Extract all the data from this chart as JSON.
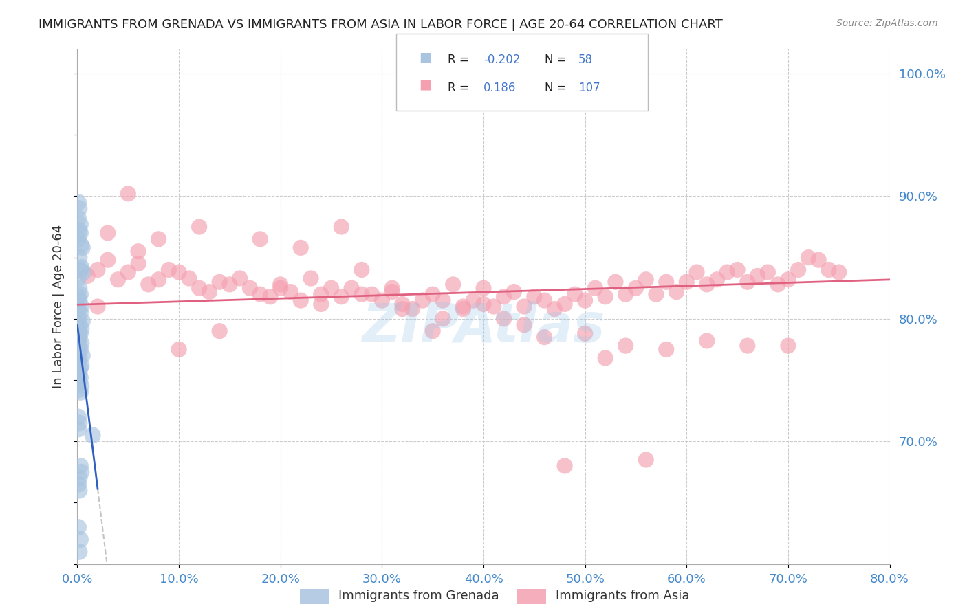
{
  "title": "IMMIGRANTS FROM GRENADA VS IMMIGRANTS FROM ASIA IN LABOR FORCE | AGE 20-64 CORRELATION CHART",
  "source": "Source: ZipAtlas.com",
  "ylabel": "In Labor Force | Age 20-64",
  "xlabel_grenada": "Immigrants from Grenada",
  "xlabel_asia": "Immigrants from Asia",
  "watermark": "ZIPAtlas",
  "legend_r_grenada": "-0.202",
  "legend_n_grenada": "58",
  "legend_r_asia": "0.186",
  "legend_n_asia": "107",
  "grenada_color": "#a8c4e0",
  "asia_color": "#f4a0b0",
  "grenada_line_color": "#3060c0",
  "asia_line_color": "#e06080",
  "background_color": "#ffffff",
  "grid_color": "#cccccc",
  "xmin": 0.0,
  "xmax": 0.8,
  "ymin": 0.6,
  "ymax": 1.02,
  "yticks": [
    0.7,
    0.8,
    0.9,
    1.0
  ],
  "xticks": [
    0.0,
    0.1,
    0.2,
    0.3,
    0.4,
    0.5,
    0.6,
    0.7,
    0.8
  ],
  "grenada_x": [
    0.001,
    0.002,
    0.003,
    0.001,
    0.004,
    0.003,
    0.002,
    0.005,
    0.001,
    0.002,
    0.003,
    0.004,
    0.001,
    0.006,
    0.002,
    0.003,
    0.001,
    0.002,
    0.004,
    0.001,
    0.003,
    0.001,
    0.005,
    0.002,
    0.004,
    0.001,
    0.003,
    0.002,
    0.001,
    0.004,
    0.002,
    0.003,
    0.001,
    0.005,
    0.002,
    0.001,
    0.004,
    0.003,
    0.001,
    0.002,
    0.003,
    0.001,
    0.002,
    0.004,
    0.001,
    0.003,
    0.001,
    0.002,
    0.001,
    0.015,
    0.003,
    0.004,
    0.002,
    0.001,
    0.002,
    0.001,
    0.003,
    0.002
  ],
  "grenada_y": [
    0.895,
    0.89,
    0.87,
    0.882,
    0.86,
    0.877,
    0.872,
    0.858,
    0.865,
    0.85,
    0.84,
    0.842,
    0.833,
    0.838,
    0.825,
    0.82,
    0.818,
    0.815,
    0.81,
    0.808,
    0.805,
    0.8,
    0.798,
    0.795,
    0.792,
    0.79,
    0.788,
    0.785,
    0.783,
    0.78,
    0.778,
    0.775,
    0.772,
    0.77,
    0.768,
    0.765,
    0.762,
    0.76,
    0.758,
    0.755,
    0.752,
    0.75,
    0.748,
    0.745,
    0.742,
    0.74,
    0.72,
    0.715,
    0.71,
    0.705,
    0.68,
    0.675,
    0.67,
    0.665,
    0.66,
    0.63,
    0.62,
    0.61
  ],
  "asia_x": [
    0.01,
    0.02,
    0.03,
    0.04,
    0.05,
    0.06,
    0.07,
    0.08,
    0.09,
    0.1,
    0.11,
    0.12,
    0.13,
    0.14,
    0.15,
    0.16,
    0.17,
    0.18,
    0.19,
    0.2,
    0.21,
    0.22,
    0.23,
    0.24,
    0.25,
    0.26,
    0.27,
    0.28,
    0.29,
    0.3,
    0.31,
    0.32,
    0.33,
    0.34,
    0.35,
    0.36,
    0.37,
    0.38,
    0.39,
    0.4,
    0.41,
    0.42,
    0.43,
    0.44,
    0.45,
    0.46,
    0.47,
    0.48,
    0.49,
    0.5,
    0.51,
    0.52,
    0.53,
    0.54,
    0.55,
    0.56,
    0.57,
    0.58,
    0.59,
    0.6,
    0.61,
    0.62,
    0.63,
    0.64,
    0.65,
    0.66,
    0.67,
    0.68,
    0.69,
    0.7,
    0.71,
    0.72,
    0.73,
    0.74,
    0.75,
    0.03,
    0.05,
    0.08,
    0.12,
    0.18,
    0.22,
    0.26,
    0.31,
    0.35,
    0.38,
    0.42,
    0.46,
    0.5,
    0.54,
    0.58,
    0.62,
    0.66,
    0.7,
    0.02,
    0.06,
    0.1,
    0.14,
    0.2,
    0.24,
    0.28,
    0.32,
    0.36,
    0.4,
    0.44,
    0.48,
    0.52,
    0.56
  ],
  "asia_y": [
    0.835,
    0.84,
    0.848,
    0.832,
    0.838,
    0.845,
    0.828,
    0.832,
    0.84,
    0.838,
    0.833,
    0.825,
    0.822,
    0.83,
    0.828,
    0.833,
    0.825,
    0.82,
    0.818,
    0.828,
    0.822,
    0.815,
    0.833,
    0.82,
    0.825,
    0.818,
    0.825,
    0.84,
    0.82,
    0.815,
    0.822,
    0.812,
    0.808,
    0.815,
    0.82,
    0.815,
    0.828,
    0.81,
    0.815,
    0.825,
    0.81,
    0.818,
    0.822,
    0.81,
    0.818,
    0.815,
    0.808,
    0.812,
    0.82,
    0.815,
    0.825,
    0.818,
    0.83,
    0.82,
    0.825,
    0.832,
    0.82,
    0.83,
    0.822,
    0.83,
    0.838,
    0.828,
    0.832,
    0.838,
    0.84,
    0.83,
    0.835,
    0.838,
    0.828,
    0.832,
    0.84,
    0.85,
    0.848,
    0.84,
    0.838,
    0.87,
    0.902,
    0.865,
    0.875,
    0.865,
    0.858,
    0.875,
    0.825,
    0.79,
    0.808,
    0.8,
    0.785,
    0.788,
    0.778,
    0.775,
    0.782,
    0.778,
    0.778,
    0.81,
    0.855,
    0.775,
    0.79,
    0.825,
    0.812,
    0.82,
    0.808,
    0.8,
    0.812,
    0.795,
    0.68,
    0.768,
    0.685
  ]
}
